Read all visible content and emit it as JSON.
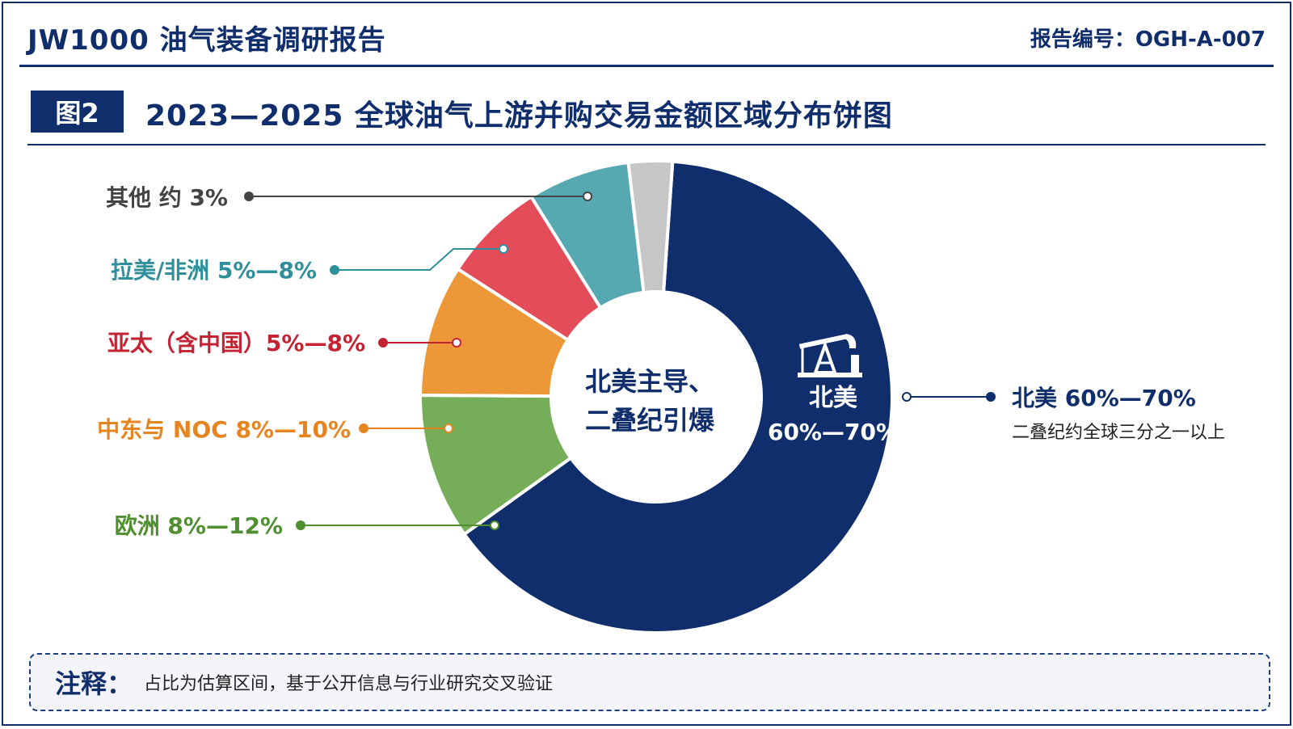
{
  "header": {
    "title": "JW1000 油气装备调研报告",
    "report_no": "报告编号：OGH-A-007"
  },
  "figure": {
    "badge": "图2",
    "title": "2023—2025 全球油气上游并购交易金额区域分布饼图"
  },
  "chart_data": {
    "type": "pie",
    "title": "2023—2025 全球油气上游并购交易金额区域分布饼图",
    "center_label": [
      "北美主导、",
      "二叠纪引爆"
    ],
    "series": [
      {
        "name": "北美",
        "label": "北美 60%—70%",
        "range": [
          60,
          70
        ],
        "value": 64,
        "color": "#0f2e6b",
        "inner_label": [
          "北美",
          "60%—70%"
        ],
        "sub_label": "二叠纪约全球三分之一以上"
      },
      {
        "name": "欧洲",
        "label": "欧洲 8%—12%",
        "range": [
          8,
          12
        ],
        "value": 10,
        "color": "#76ad58"
      },
      {
        "name": "中东与 NOC",
        "label": "中东与 NOC 8%—10%",
        "range": [
          8,
          10
        ],
        "value": 9,
        "color": "#ed9838"
      },
      {
        "name": "亚太（含中国）",
        "label": "亚太（含中国）5%—8%",
        "range": [
          5,
          8
        ],
        "value": 7,
        "color": "#e54c5a"
      },
      {
        "name": "拉美/非洲",
        "label": "拉美/非洲 5%—8%",
        "range": [
          5,
          8
        ],
        "value": 7,
        "color": "#56a8b1"
      },
      {
        "name": "其他",
        "label": "其他 约 3%",
        "range": [
          3,
          3
        ],
        "value": 3,
        "color": "#c6c6c6"
      }
    ],
    "label_colors": [
      "#0f2e6b",
      "#4f8f2f",
      "#e6841f",
      "#c42333",
      "#2f8f9a",
      "#444444"
    ]
  },
  "note": {
    "label": "注释：",
    "text": "占比为估算区间，基于公开信息与行业研究交叉验证"
  }
}
